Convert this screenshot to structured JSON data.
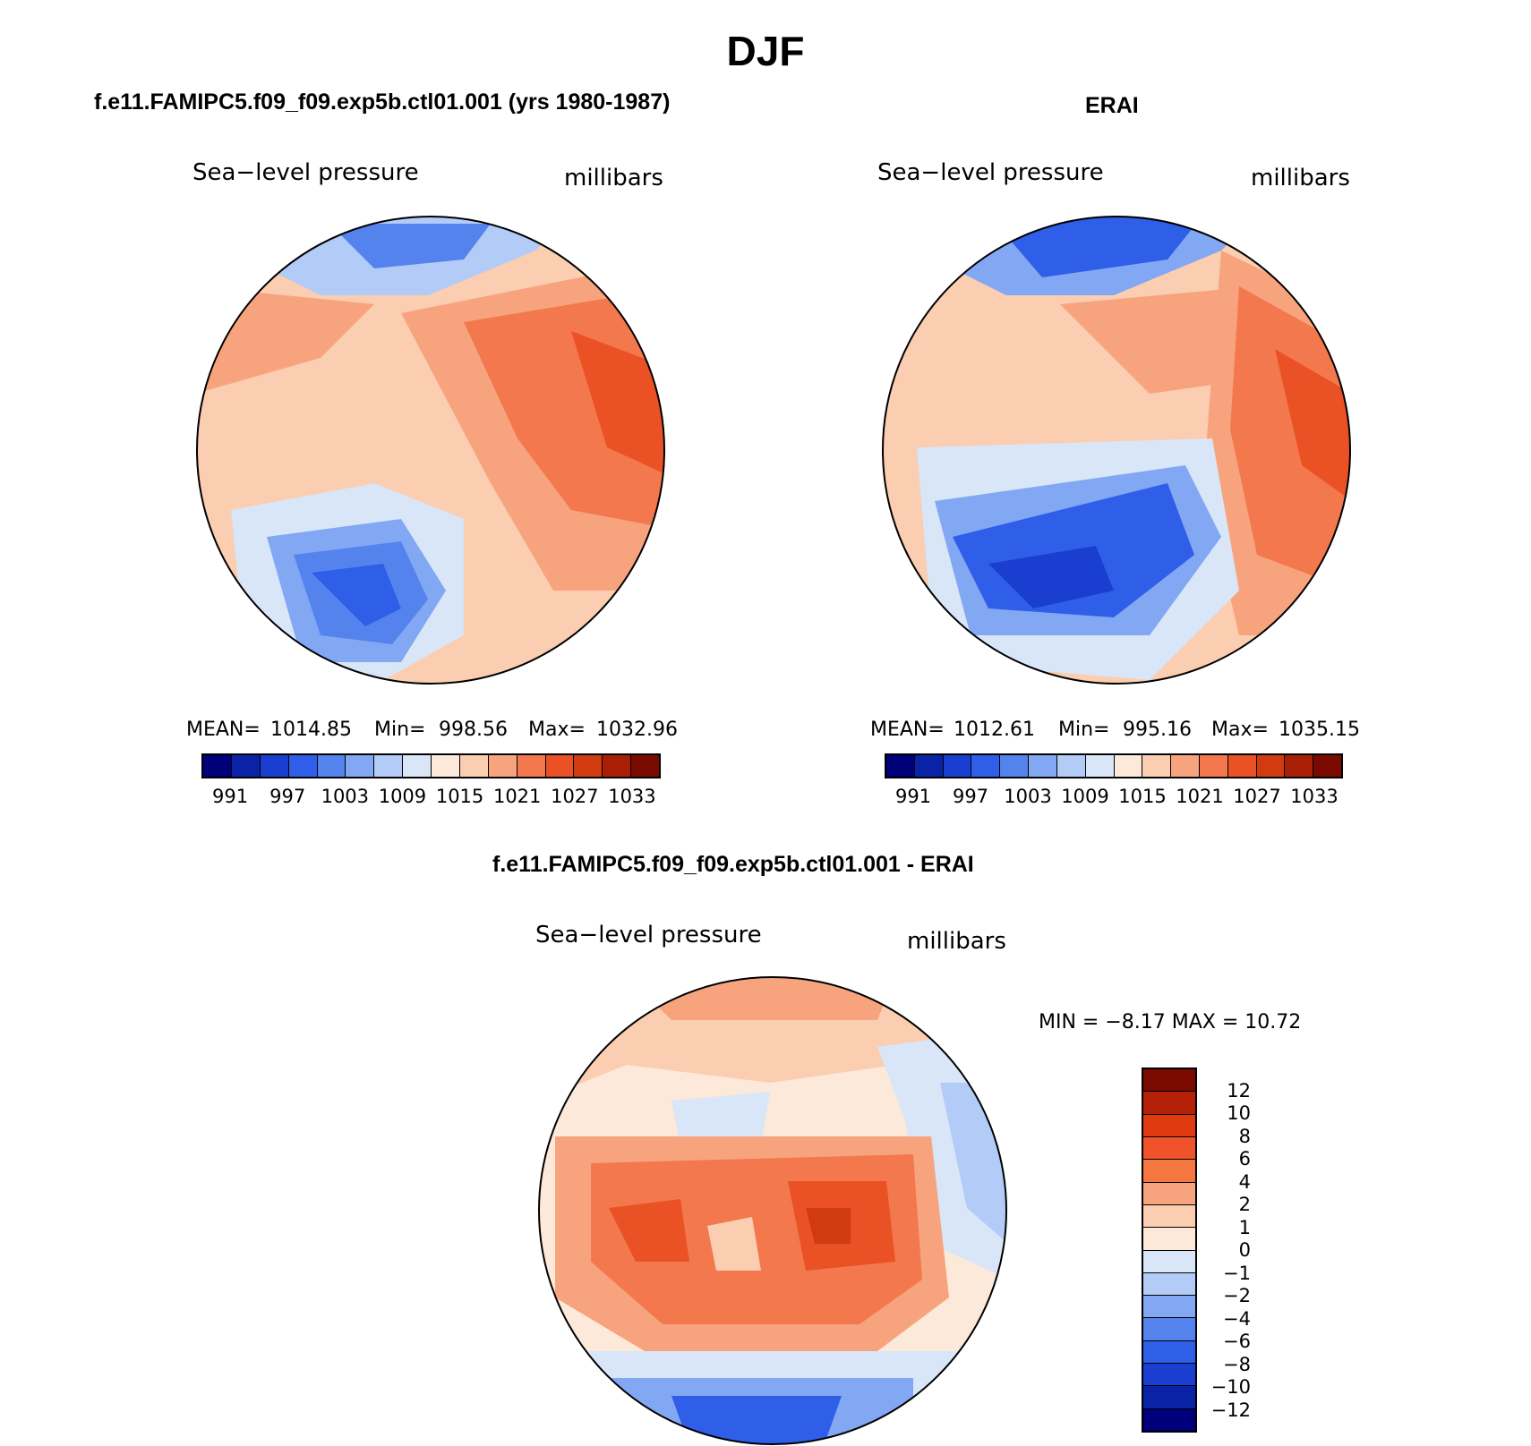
{
  "page": {
    "title": "DJF"
  },
  "panels": [
    {
      "title": "f.e11.FAMIPC5.f09_f09.exp5b.ctl01.001 (yrs 1980-1987)",
      "left_label": "Sea−level pressure",
      "right_label": "millibars",
      "stats": {
        "mean_label": "MEAN=",
        "mean": "1014.85",
        "min_label": "Min=",
        "min": "998.56",
        "max_label": "Max=",
        "max": "1032.96"
      },
      "colorbar_ticks": [
        "991",
        "997",
        "1003",
        "1009",
        "1015",
        "1021",
        "1027",
        "1033"
      ]
    },
    {
      "title": "ERAI",
      "left_label": "Sea−level pressure",
      "right_label": "millibars",
      "stats": {
        "mean_label": "MEAN=",
        "mean": "1012.61",
        "min_label": "Min=",
        "min": "995.16",
        "max_label": "Max=",
        "max": "1035.15"
      },
      "colorbar_ticks": [
        "991",
        "997",
        "1003",
        "1009",
        "1015",
        "1021",
        "1027",
        "1033"
      ]
    },
    {
      "title": "f.e11.FAMIPC5.f09_f09.exp5b.ctl01.001 - ERAI",
      "left_label": "Sea−level pressure",
      "right_label": "millibars",
      "stats_text": "MIN =   −8.17 MAX =   10.72",
      "colorbar_ticks": [
        "12",
        "10",
        "8",
        "6",
        "4",
        "2",
        "1",
        "0",
        "−1",
        "−2",
        "−4",
        "−6",
        "−8",
        "−10",
        "−12"
      ]
    }
  ],
  "colors": {
    "slp_scale": [
      "#00007a",
      "#0a23a6",
      "#1a3fd0",
      "#2f5ee8",
      "#5583ee",
      "#82a7f3",
      "#b3cbf7",
      "#d9e6f8",
      "#fce9d9",
      "#fbcdb1",
      "#f7a47e",
      "#f3784e",
      "#ea5225",
      "#d13b10",
      "#a91f06",
      "#7a0a00"
    ],
    "diff_scale": [
      "#7a0a00",
      "#b52008",
      "#e03a10",
      "#f0532a",
      "#f4773f",
      "#f7a47e",
      "#fbcdb1",
      "#fce9d9",
      "#d9e6f8",
      "#b3cbf7",
      "#82a7f3",
      "#5583ee",
      "#2f5ee8",
      "#1a3fd0",
      "#0a23a6",
      "#00007a"
    ]
  }
}
